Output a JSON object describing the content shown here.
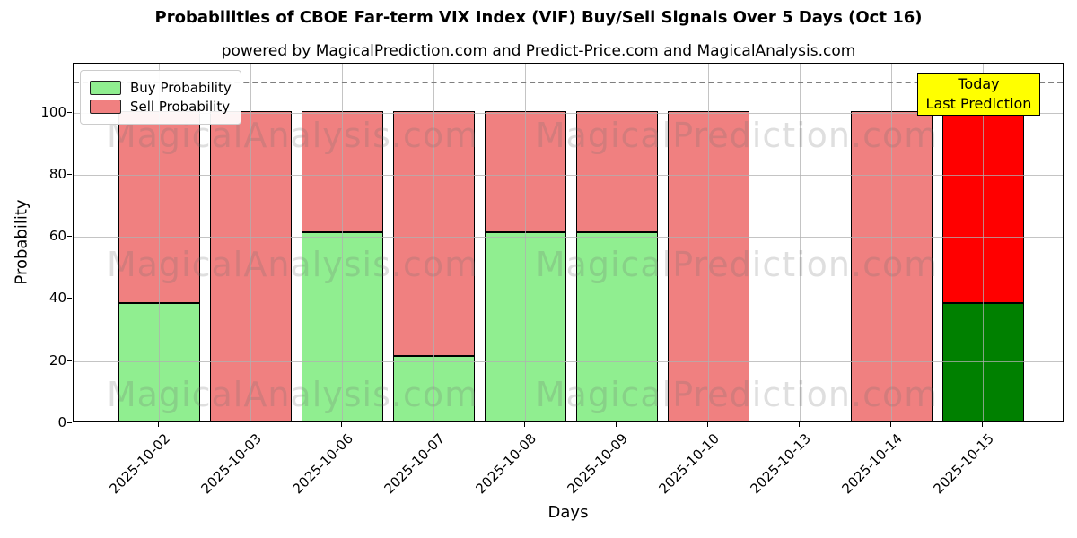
{
  "title": "Probabilities of CBOE Far-term VIX Index (VIF) Buy/Sell Signals Over 5 Days (Oct 16)",
  "subtitle": "powered by MagicalPrediction.com and Predict-Price.com and MagicalAnalysis.com",
  "legend": {
    "buy": "Buy Probability",
    "sell": "Sell Probability"
  },
  "annotation": {
    "line1": "Today",
    "line2": "Last Prediction"
  },
  "watermarks": [
    "MagicalAnalysis.com",
    "MagicalPrediction.com"
  ],
  "colors": {
    "buy": "#90ee90",
    "sell": "#f08080",
    "buy_today": "#008000",
    "sell_today": "#ff0000",
    "annotation_bg": "#ffff00",
    "grid": "#b0b0b0",
    "dashed_line": "#7f7f7f"
  },
  "chart_data": {
    "type": "bar",
    "stacked": true,
    "title": "Probabilities of CBOE Far-term VIX Index (VIF) Buy/Sell Signals Over 5 Days (Oct 16)",
    "categories": [
      "2025-10-02",
      "2025-10-03",
      "2025-10-06",
      "2025-10-07",
      "2025-10-08",
      "2025-10-09",
      "2025-10-10",
      "2025-10-13",
      "2025-10-14",
      "2025-10-15"
    ],
    "series": [
      {
        "name": "Buy Probability",
        "color": "#90ee90",
        "today_color": "#008000",
        "values": [
          38,
          0,
          61,
          21,
          61,
          61,
          0,
          null,
          0,
          38
        ]
      },
      {
        "name": "Sell Probability",
        "color": "#f08080",
        "today_color": "#ff0000",
        "values": [
          62,
          100,
          39,
          79,
          39,
          39,
          100,
          null,
          100,
          62
        ]
      }
    ],
    "xlabel": "Days",
    "ylabel": "Probability",
    "yticks": [
      0,
      20,
      40,
      60,
      80,
      100
    ],
    "ylim": [
      0,
      115.7
    ],
    "grid": true,
    "legend_position": "upper left",
    "dashed_line_y": 110,
    "today_index": 9
  }
}
